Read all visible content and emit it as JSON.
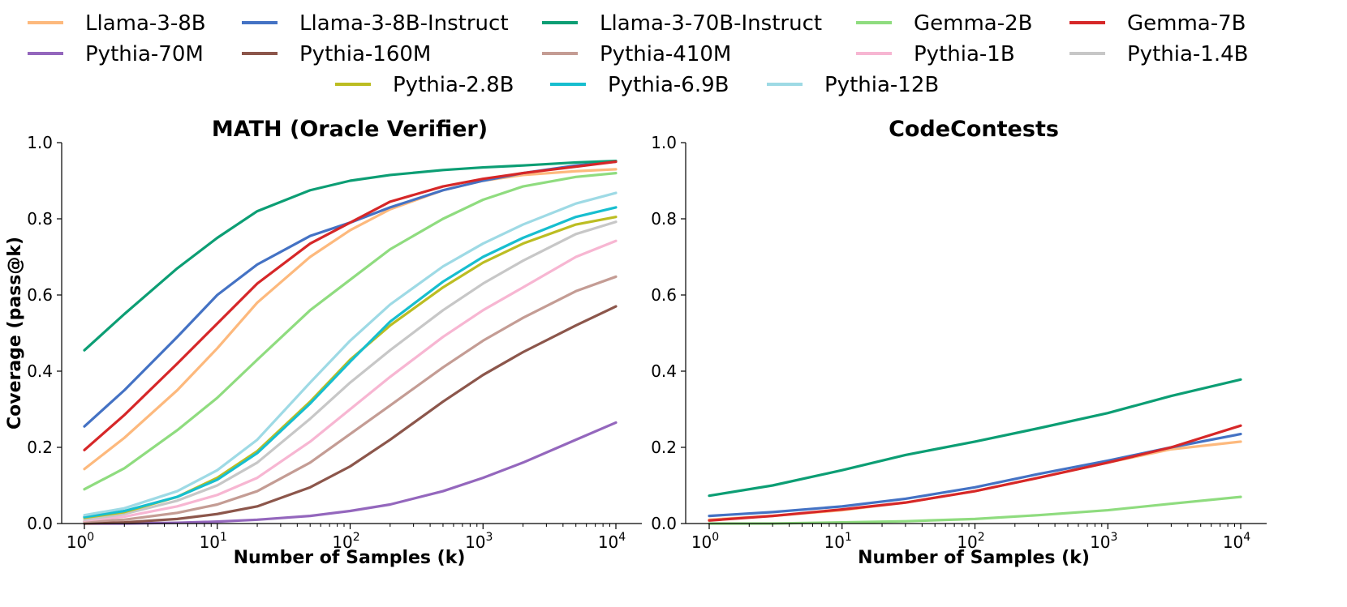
{
  "legend": {
    "placement": "top",
    "entries": [
      {
        "name": "Llama-3-8B",
        "color": "#fdb97d"
      },
      {
        "name": "Llama-3-8B-Instruct",
        "color": "#4472c4"
      },
      {
        "name": "Llama-3-70B-Instruct",
        "color": "#0c9e74"
      },
      {
        "name": "Gemma-2B",
        "color": "#8fdc7f"
      },
      {
        "name": "Gemma-7B",
        "color": "#d62728"
      },
      {
        "name": "Pythia-70M",
        "color": "#9467bd"
      },
      {
        "name": "Pythia-160M",
        "color": "#8c564b"
      },
      {
        "name": "Pythia-410M",
        "color": "#c49c94"
      },
      {
        "name": "Pythia-1B",
        "color": "#f7b6d2"
      },
      {
        "name": "Pythia-1.4B",
        "color": "#c7c7c7"
      },
      {
        "name": "Pythia-2.8B",
        "color": "#bcbd22"
      },
      {
        "name": "Pythia-6.9B",
        "color": "#17becf"
      },
      {
        "name": "Pythia-12B",
        "color": "#9edae5"
      }
    ]
  },
  "chart_data": [
    {
      "type": "line",
      "title": "MATH (Oracle Verifier)",
      "xlabel": "Number of Samples (k)",
      "ylabel": "Coverage (pass@k)",
      "xscale": "log",
      "xlim": [
        1,
        10000
      ],
      "ylim": [
        0,
        1.0
      ],
      "x": [
        1,
        2,
        5,
        10,
        20,
        50,
        100,
        200,
        500,
        1000,
        2000,
        5000,
        10000
      ],
      "xticks": [
        {
          "value": 1,
          "base": "10",
          "exp": "0"
        },
        {
          "value": 10,
          "base": "10",
          "exp": "1"
        },
        {
          "value": 100,
          "base": "10",
          "exp": "2"
        },
        {
          "value": 1000,
          "base": "10",
          "exp": "3"
        },
        {
          "value": 10000,
          "base": "10",
          "exp": "4"
        }
      ],
      "yticks": [
        "0.0",
        "0.2",
        "0.4",
        "0.6",
        "0.8",
        "1.0"
      ],
      "grid": false,
      "series": [
        {
          "name": "Llama-3-8B",
          "color": "#fdb97d",
          "values": [
            0.143,
            0.225,
            0.35,
            0.46,
            0.58,
            0.7,
            0.77,
            0.825,
            0.875,
            0.9,
            0.915,
            0.925,
            0.93
          ]
        },
        {
          "name": "Llama-3-8B-Instruct",
          "color": "#4472c4",
          "values": [
            0.255,
            0.35,
            0.49,
            0.6,
            0.68,
            0.755,
            0.79,
            0.83,
            0.875,
            0.9,
            0.92,
            0.94,
            0.95
          ]
        },
        {
          "name": "Llama-3-70B-Instruct",
          "color": "#0c9e74",
          "values": [
            0.455,
            0.55,
            0.67,
            0.75,
            0.82,
            0.875,
            0.9,
            0.915,
            0.928,
            0.935,
            0.94,
            0.948,
            0.952
          ]
        },
        {
          "name": "Gemma-2B",
          "color": "#8fdc7f",
          "values": [
            0.09,
            0.145,
            0.245,
            0.33,
            0.43,
            0.56,
            0.64,
            0.72,
            0.8,
            0.85,
            0.885,
            0.91,
            0.92
          ]
        },
        {
          "name": "Gemma-7B",
          "color": "#d62728",
          "values": [
            0.193,
            0.285,
            0.42,
            0.525,
            0.63,
            0.735,
            0.79,
            0.845,
            0.885,
            0.905,
            0.92,
            0.937,
            0.95
          ]
        },
        {
          "name": "Pythia-70M",
          "color": "#9467bd",
          "values": [
            0.0,
            0.0,
            0.002,
            0.005,
            0.01,
            0.02,
            0.033,
            0.05,
            0.085,
            0.12,
            0.16,
            0.22,
            0.265
          ]
        },
        {
          "name": "Pythia-160M",
          "color": "#8c564b",
          "values": [
            0.0,
            0.003,
            0.012,
            0.025,
            0.045,
            0.095,
            0.15,
            0.22,
            0.32,
            0.39,
            0.45,
            0.52,
            0.57
          ]
        },
        {
          "name": "Pythia-410M",
          "color": "#c49c94",
          "values": [
            0.005,
            0.01,
            0.028,
            0.05,
            0.085,
            0.16,
            0.235,
            0.31,
            0.41,
            0.48,
            0.54,
            0.61,
            0.648
          ]
        },
        {
          "name": "Pythia-1B",
          "color": "#f7b6d2",
          "values": [
            0.008,
            0.018,
            0.045,
            0.075,
            0.12,
            0.215,
            0.3,
            0.385,
            0.49,
            0.56,
            0.62,
            0.7,
            0.742
          ]
        },
        {
          "name": "Pythia-1.4B",
          "color": "#c7c7c7",
          "values": [
            0.01,
            0.025,
            0.06,
            0.1,
            0.16,
            0.275,
            0.37,
            0.455,
            0.56,
            0.63,
            0.69,
            0.76,
            0.792
          ]
        },
        {
          "name": "Pythia-2.8B",
          "color": "#bcbd22",
          "values": [
            0.015,
            0.03,
            0.07,
            0.12,
            0.19,
            0.32,
            0.43,
            0.52,
            0.62,
            0.685,
            0.735,
            0.785,
            0.805
          ]
        },
        {
          "name": "Pythia-6.9B",
          "color": "#17becf",
          "values": [
            0.017,
            0.033,
            0.07,
            0.115,
            0.185,
            0.315,
            0.425,
            0.53,
            0.635,
            0.7,
            0.75,
            0.805,
            0.83
          ]
        },
        {
          "name": "Pythia-12B",
          "color": "#9edae5",
          "values": [
            0.022,
            0.04,
            0.085,
            0.14,
            0.22,
            0.37,
            0.48,
            0.575,
            0.675,
            0.735,
            0.785,
            0.84,
            0.868
          ]
        }
      ]
    },
    {
      "type": "line",
      "title": "CodeContests",
      "xlabel": "Number of Samples (k)",
      "ylabel": "",
      "xscale": "log",
      "xlim": [
        1,
        10000
      ],
      "ylim": [
        0,
        1.0
      ],
      "x": [
        1,
        3,
        10,
        30,
        100,
        300,
        1000,
        3000,
        10000
      ],
      "xticks": [
        {
          "value": 1,
          "base": "10",
          "exp": "0"
        },
        {
          "value": 10,
          "base": "10",
          "exp": "1"
        },
        {
          "value": 100,
          "base": "10",
          "exp": "2"
        },
        {
          "value": 1000,
          "base": "10",
          "exp": "3"
        },
        {
          "value": 10000,
          "base": "10",
          "exp": "4"
        }
      ],
      "yticks": [
        "0.0",
        "0.2",
        "0.4",
        "0.6",
        "0.8",
        "1.0"
      ],
      "grid": false,
      "series": [
        {
          "name": "Llama-3-8B",
          "color": "#fdb97d",
          "values": [
            0.01,
            0.02,
            0.035,
            0.055,
            0.085,
            0.12,
            0.16,
            0.195,
            0.215
          ]
        },
        {
          "name": "Llama-3-8B-Instruct",
          "color": "#4472c4",
          "values": [
            0.02,
            0.03,
            0.045,
            0.065,
            0.095,
            0.13,
            0.165,
            0.2,
            0.235
          ]
        },
        {
          "name": "Llama-3-70B-Instruct",
          "color": "#0c9e74",
          "values": [
            0.073,
            0.1,
            0.14,
            0.18,
            0.215,
            0.25,
            0.29,
            0.335,
            0.378
          ]
        },
        {
          "name": "Gemma-2B",
          "color": "#8fdc7f",
          "values": [
            0.0,
            0.0,
            0.003,
            0.006,
            0.012,
            0.022,
            0.035,
            0.052,
            0.07
          ]
        },
        {
          "name": "Gemma-7B",
          "color": "#d62728",
          "values": [
            0.008,
            0.02,
            0.037,
            0.055,
            0.085,
            0.12,
            0.16,
            0.2,
            0.257
          ]
        }
      ]
    }
  ]
}
